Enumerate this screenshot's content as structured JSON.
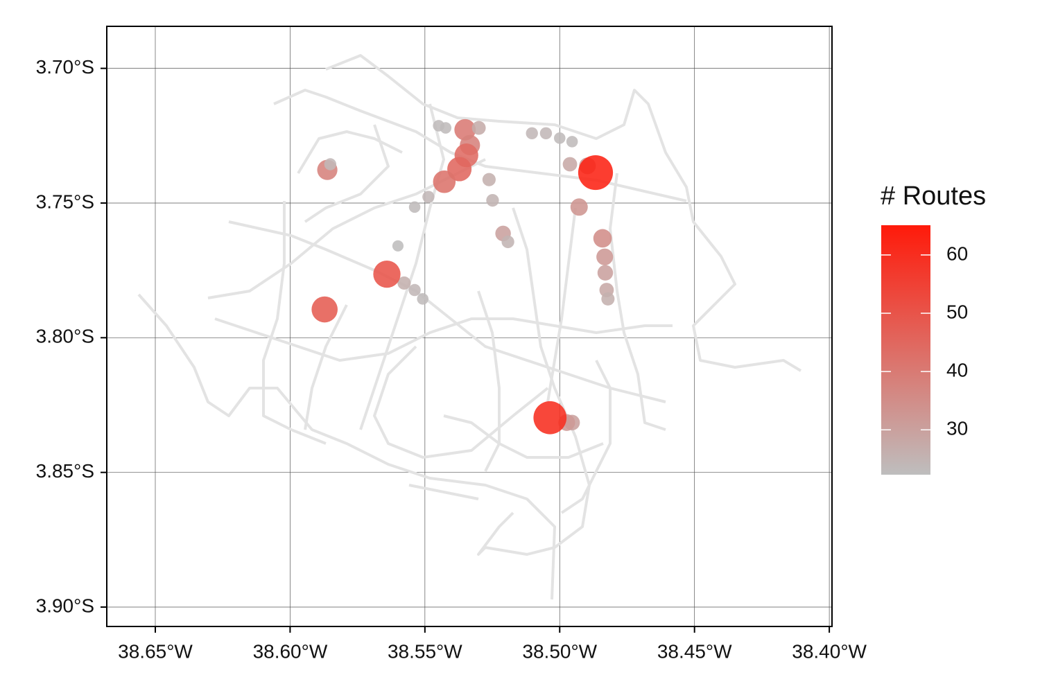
{
  "chart_data": {
    "type": "scatter",
    "x": [
      -38.5351,
      -38.5333,
      -38.5346,
      -38.5372,
      -38.5428,
      -38.5862,
      -38.4954,
      -38.4974,
      -38.4841,
      -38.4833,
      -38.4831,
      -38.4826,
      -38.4928,
      -38.4897,
      -38.4962,
      -38.521,
      -38.5192,
      -38.5262,
      -38.5249,
      -38.53,
      -38.5577,
      -38.5538,
      -38.5508,
      -38.5449,
      -38.5423,
      -38.5103,
      -38.5051,
      -38.5,
      -38.4954,
      -38.5538,
      -38.5487,
      -38.5851,
      -38.56,
      -38.4821,
      -38.5872,
      -38.5641,
      -38.5036,
      -38.4867
    ],
    "values": [
      -3.7228,
      -3.7285,
      -3.7323,
      -3.7374,
      -3.7421,
      -3.7377,
      -3.8315,
      -3.8315,
      -3.7631,
      -3.77,
      -3.7759,
      -3.7823,
      -3.7515,
      -3.7362,
      -3.7356,
      -3.7613,
      -3.7644,
      -3.7413,
      -3.749,
      -3.7221,
      -3.7797,
      -3.7823,
      -3.7856,
      -3.7213,
      -3.7221,
      -3.7241,
      -3.7241,
      -3.7259,
      -3.7272,
      -3.7515,
      -3.7477,
      -3.7356,
      -3.7659,
      -3.7856,
      -3.7895,
      -3.7764,
      -3.8297,
      -3.7387
    ],
    "routes": [
      40,
      38,
      44,
      45,
      42,
      38,
      30,
      32,
      35,
      32,
      30,
      28,
      33,
      32,
      28,
      30,
      25,
      26,
      25,
      27,
      26,
      24,
      23,
      23,
      23,
      24,
      24,
      23,
      23,
      23,
      24,
      24,
      22.5,
      26,
      48,
      50,
      60,
      63
    ],
    "xlim": [
      -38.668,
      -38.399
    ],
    "ylim": [
      -3.9072,
      -3.6844
    ],
    "xticks": [
      {
        "value": -38.65,
        "label": "38.65°W"
      },
      {
        "value": -38.6,
        "label": "38.60°W"
      },
      {
        "value": -38.55,
        "label": "38.55°W"
      },
      {
        "value": -38.5,
        "label": "38.50°W"
      },
      {
        "value": -38.45,
        "label": "38.45°W"
      },
      {
        "value": -38.4,
        "label": "38.40°W"
      }
    ],
    "yticks": [
      {
        "value": -3.7,
        "label": "3.70°S"
      },
      {
        "value": -3.75,
        "label": "3.75°S"
      },
      {
        "value": -3.8,
        "label": "3.80°S"
      },
      {
        "value": -3.85,
        "label": "3.85°S"
      },
      {
        "value": -3.9,
        "label": "3.90°S"
      }
    ],
    "grid": true,
    "legend_title": "# Routes",
    "color_lim": [
      22.3,
      65.1
    ],
    "color_ticks": [
      30,
      40,
      50,
      60
    ],
    "low_color": "#bebebe",
    "high_color": "#ff1a0a"
  }
}
